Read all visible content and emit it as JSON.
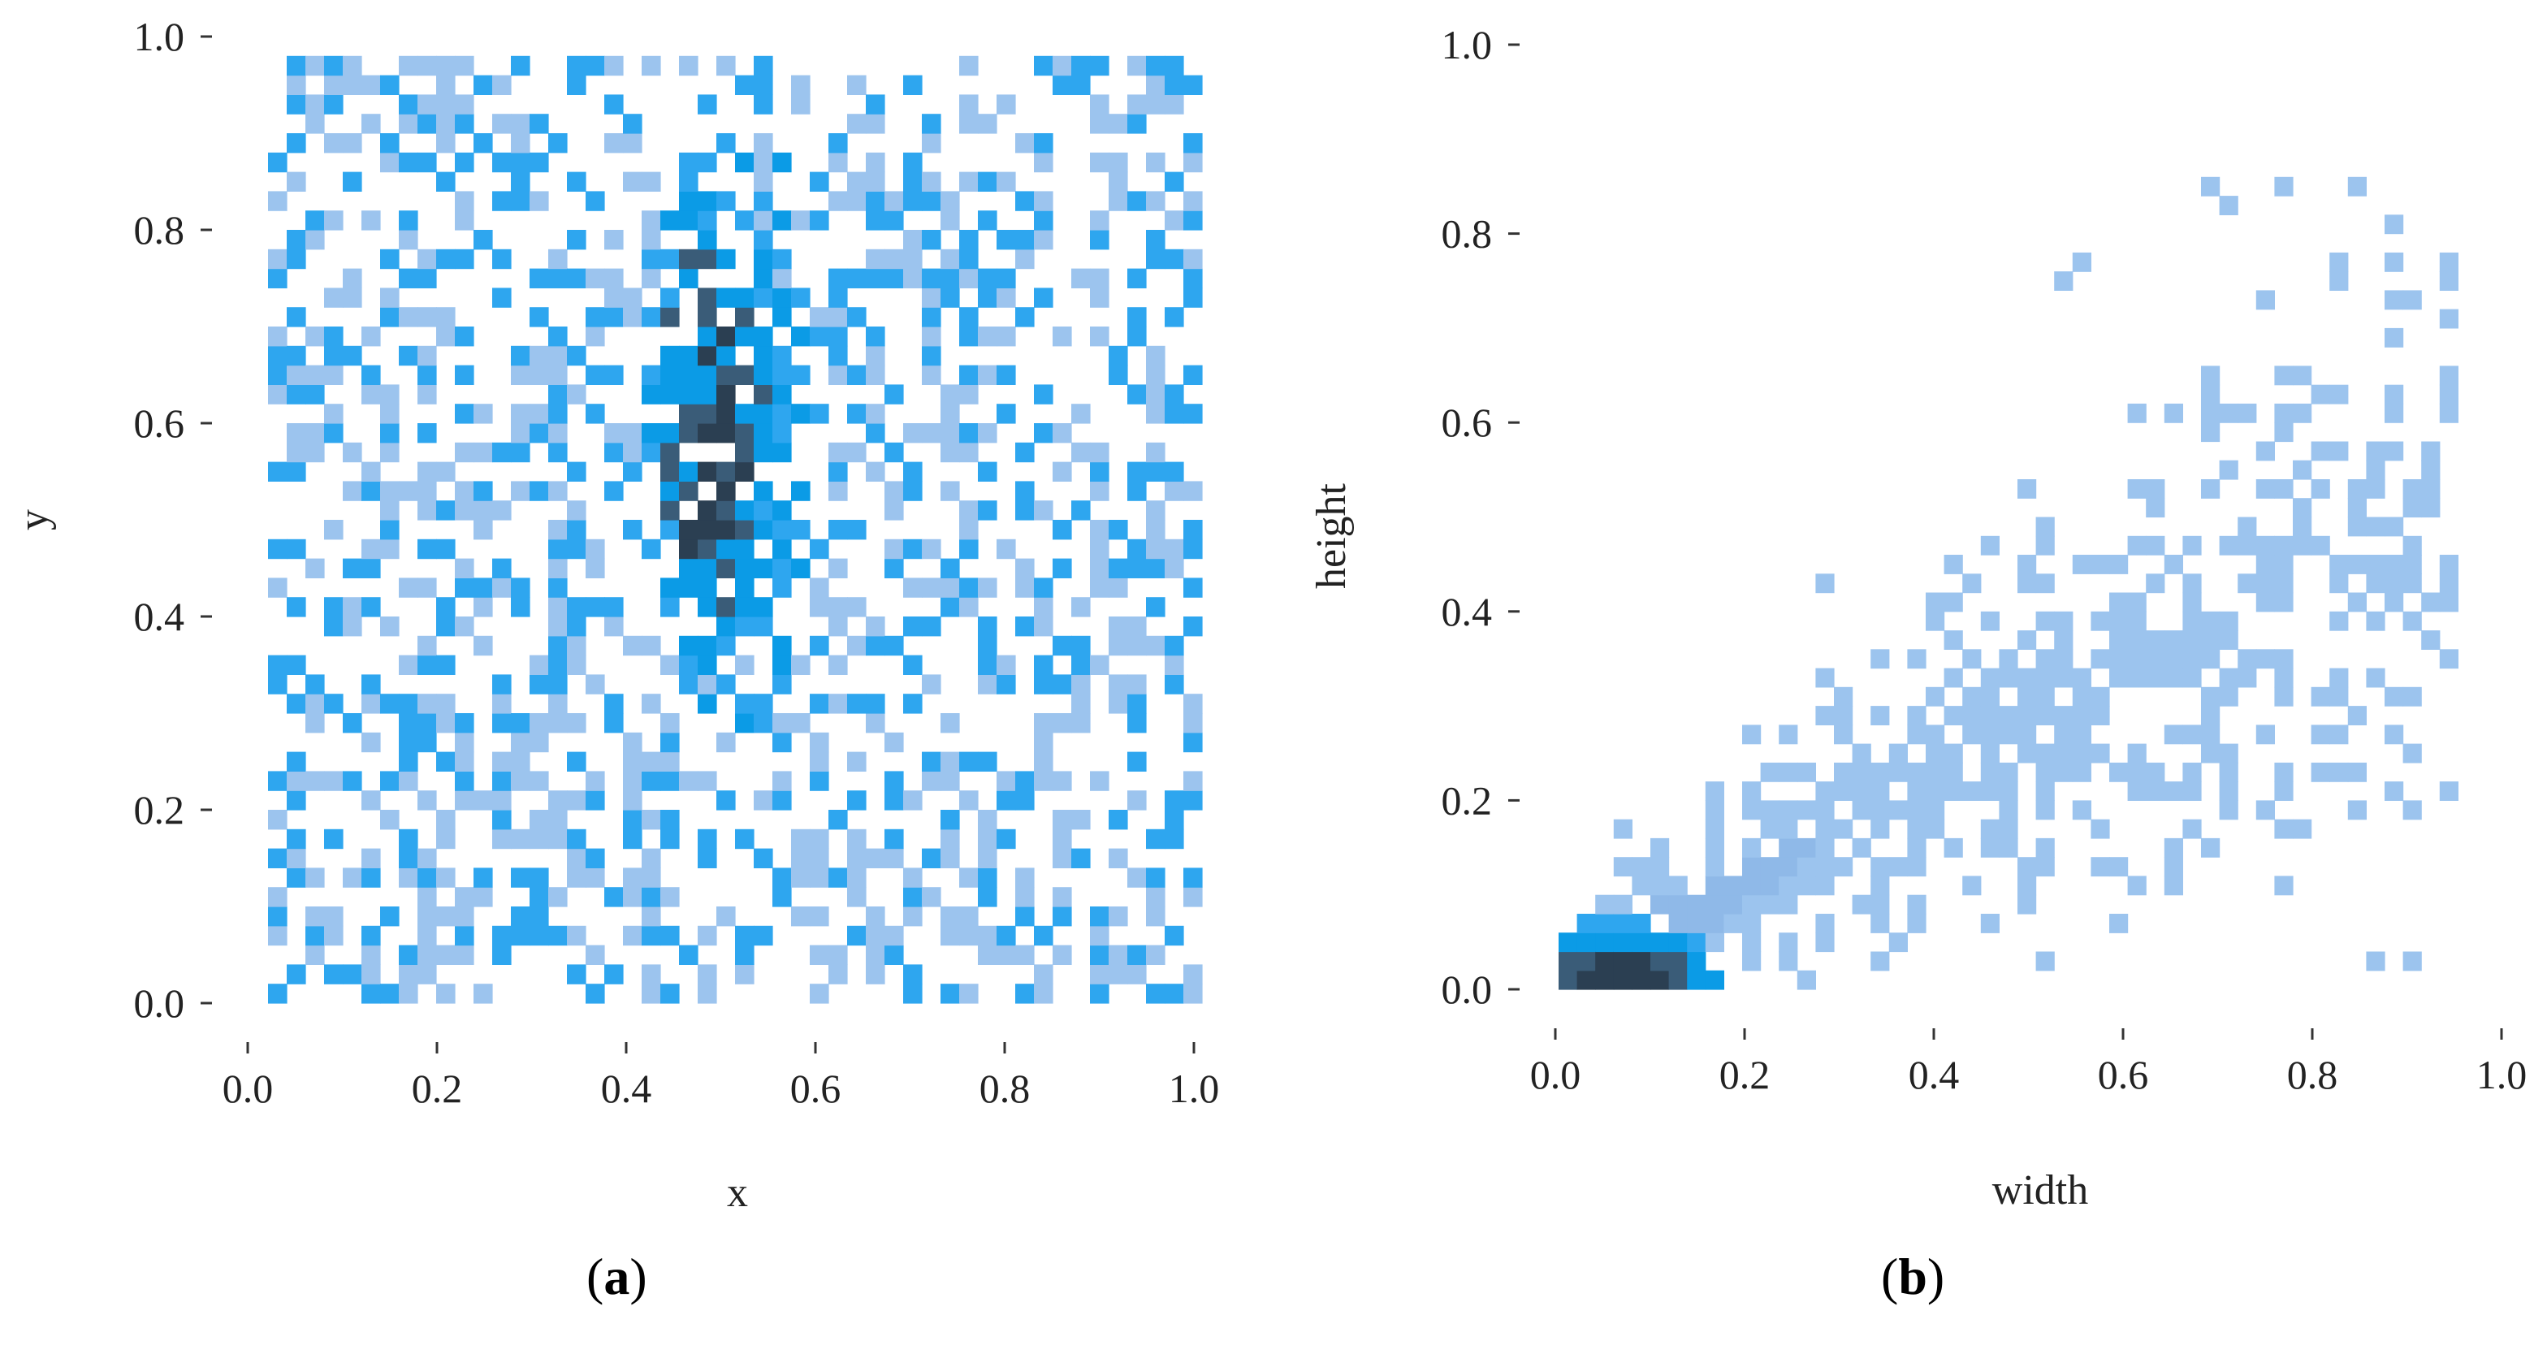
{
  "palette": {
    "light": "#9cc4ee",
    "mid": "#2ea6ef",
    "bright": "#0b9be6",
    "dark": "#3a5c78",
    "darkest": "#2b3f52"
  },
  "chart_data": [
    {
      "type": "heatmap",
      "panel_label": "(a)",
      "panel_letter": "a",
      "title": "",
      "xlabel": "x",
      "ylabel": "y",
      "xlim": [
        0.0,
        1.0
      ],
      "ylim": [
        0.0,
        1.0
      ],
      "xticks": [
        "0.0",
        "0.2",
        "0.4",
        "0.6",
        "0.8",
        "1.0"
      ],
      "yticks": [
        "0.0",
        "0.2",
        "0.4",
        "0.6",
        "0.8",
        "1.0"
      ],
      "grid": false,
      "bins": 50,
      "distribution": "roughly uniform scatter of box centers over [0,1]x[0,1] with a dense vertical band near x≈0.45–0.5, y≈0.45–0.75"
    },
    {
      "type": "heatmap",
      "panel_label": "(b)",
      "panel_letter": "b",
      "title": "",
      "xlabel": "width",
      "ylabel": "height",
      "xlim": [
        0.0,
        1.0
      ],
      "ylim": [
        0.0,
        1.0
      ],
      "xticks": [
        "0.0",
        "0.2",
        "0.4",
        "0.6",
        "0.8",
        "1.0"
      ],
      "yticks": [
        "0.0",
        "0.2",
        "0.4",
        "0.6",
        "0.8",
        "1.0"
      ],
      "grid": false,
      "bins": 50,
      "distribution": "density concentrated near the origin (width≈0.05–0.1, height≈0.0–0.05), spreading along the diagonal height≈0.5×width, sparse toward upper right"
    }
  ]
}
